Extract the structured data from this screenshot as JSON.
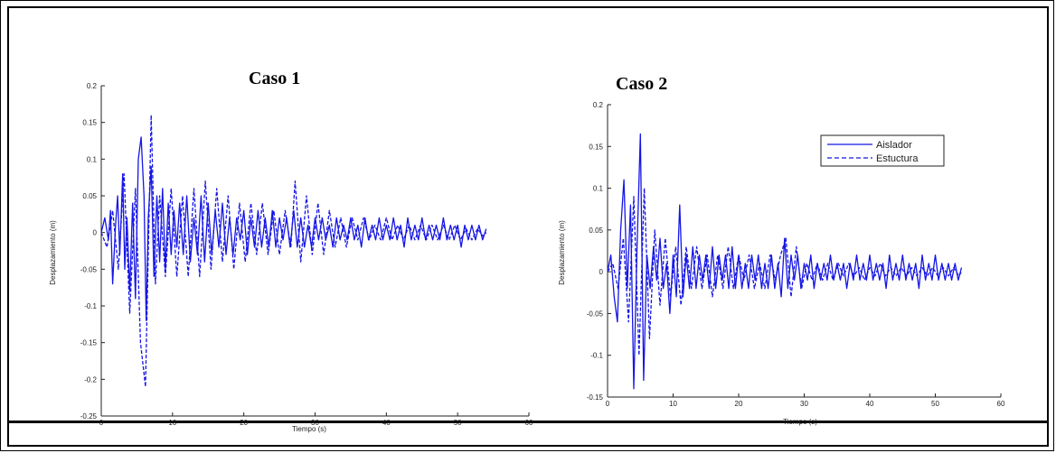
{
  "colors": {
    "series": "#1515e6",
    "frame": "#000000"
  },
  "chart_data": [
    {
      "type": "line",
      "title": "Caso 1",
      "xlabel": "Tiempo (s)",
      "ylabel": "Desplazamiento (m)",
      "xlim": [
        0,
        60
      ],
      "ylim": [
        -0.25,
        0.2
      ],
      "xticks": [
        "0",
        "10",
        "20",
        "30",
        "40",
        "50",
        "60"
      ],
      "yticks": [
        "0.2",
        "0.15",
        "0.1",
        "0.05",
        "0",
        "-0.05",
        "-0.1",
        "-0.15",
        "-0.2",
        "-0.25"
      ],
      "series": [
        {
          "style": "solid",
          "x": [
            0,
            0.5,
            1,
            1.3,
            1.6,
            2,
            2.3,
            2.6,
            3,
            3.3,
            3.6,
            4,
            4.4,
            4.8,
            5.2,
            5.6,
            6,
            6.3,
            6.6,
            7,
            7.4,
            7.8,
            8.2,
            8.6,
            9,
            9.4,
            9.8,
            10.2,
            10.6,
            11,
            11.5,
            12,
            12.5,
            13,
            13.5,
            14,
            14.5,
            15,
            15.5,
            16,
            16.5,
            17,
            17.5,
            18,
            18.5,
            19,
            19.5,
            20,
            20.5,
            21,
            21.5,
            22,
            22.5,
            23,
            23.5,
            24,
            24.5,
            25,
            25.5,
            26,
            26.5,
            27,
            27.5,
            28,
            28.5,
            29,
            29.5,
            30,
            30.5,
            31,
            31.5,
            32,
            32.5,
            33,
            33.5,
            34,
            34.5,
            35,
            35.5,
            36,
            36.5,
            37,
            37.5,
            38,
            38.5,
            39,
            39.5,
            40,
            40.5,
            41,
            41.5,
            42,
            42.5,
            43,
            43.5,
            44,
            44.5,
            45,
            45.5,
            46,
            46.5,
            47,
            47.5,
            48,
            48.5,
            49,
            49.5,
            50,
            50.5,
            51,
            51.5,
            52,
            52.5,
            53,
            53.5,
            54
          ],
          "y": [
            0,
            0.02,
            -0.01,
            0.03,
            -0.07,
            0.01,
            0.05,
            -0.03,
            0.08,
            -0.05,
            0.02,
            -0.08,
            0.04,
            -0.09,
            0.1,
            0.13,
            0.05,
            -0.12,
            0.02,
            0.09,
            -0.06,
            0.05,
            -0.04,
            0.06,
            -0.05,
            0.04,
            -0.03,
            0.03,
            -0.02,
            0.04,
            -0.03,
            0.05,
            -0.04,
            0.02,
            -0.03,
            0.05,
            -0.04,
            0.04,
            -0.03,
            0.03,
            -0.02,
            0.04,
            -0.03,
            0.02,
            -0.03,
            0.02,
            -0.01,
            0.03,
            -0.03,
            0.02,
            -0.02,
            0.03,
            -0.02,
            0.02,
            -0.02,
            0.03,
            -0.02,
            0.02,
            -0.01,
            0.02,
            -0.02,
            0.03,
            -0.02,
            0.02,
            -0.02,
            0.01,
            -0.02,
            0.02,
            -0.01,
            0.02,
            -0.01,
            0.01,
            -0.02,
            0.02,
            -0.01,
            0.01,
            -0.01,
            0.02,
            -0.01,
            0.01,
            -0.02,
            0.02,
            -0.01,
            0.01,
            -0.01,
            0.02,
            -0.01,
            0.01,
            -0.01,
            0.02,
            -0.01,
            0.01,
            -0.02,
            0.02,
            -0.01,
            0.01,
            -0.01,
            0.02,
            -0.01,
            0.01,
            -0.01,
            0.01,
            -0.01,
            0.02,
            -0.01,
            0.01,
            -0.01,
            0.01,
            -0.02,
            0.01,
            -0.01,
            0.01,
            -0.01,
            0.01,
            -0.01,
            0.005
          ]
        },
        {
          "style": "dashed",
          "x": [
            0,
            0.8,
            1.6,
            2.4,
            3.2,
            4,
            4.8,
            5.5,
            6.2,
            7,
            7.6,
            8.2,
            9,
            9.8,
            10.6,
            11.4,
            12.2,
            13,
            13.8,
            14.6,
            15.4,
            16.2,
            17,
            17.8,
            18.6,
            19.4,
            20.2,
            21,
            21.8,
            22.6,
            23.4,
            24.2,
            25,
            25.8,
            26.6,
            27.2,
            28,
            28.8,
            29.6,
            30.4,
            31.2,
            32,
            32.8,
            33.6,
            34.4,
            35.2,
            36,
            36.8,
            37.6,
            38.4,
            39.2,
            40,
            40.8,
            41.6,
            42.4,
            43.2,
            44,
            44.8,
            45.6,
            46.4,
            47.2,
            48,
            48.8,
            49.6,
            50.4,
            51.2,
            52,
            52.8,
            53.6,
            54
          ],
          "y": [
            0,
            -0.02,
            0.03,
            -0.05,
            0.08,
            -0.11,
            0.06,
            -0.15,
            -0.21,
            0.16,
            -0.07,
            0.05,
            -0.06,
            0.06,
            -0.06,
            0.05,
            -0.06,
            0.06,
            -0.06,
            0.07,
            -0.05,
            0.06,
            -0.04,
            0.05,
            -0.05,
            0.04,
            -0.04,
            0.04,
            -0.03,
            0.04,
            -0.03,
            0.03,
            -0.03,
            0.03,
            -0.02,
            0.07,
            -0.04,
            0.05,
            -0.03,
            0.04,
            -0.03,
            0.03,
            -0.02,
            0.02,
            -0.02,
            0.02,
            -0.01,
            0.02,
            -0.01,
            0.01,
            -0.01,
            0.02,
            -0.01,
            0.01,
            -0.01,
            0.01,
            -0.01,
            0.01,
            -0.01,
            0.01,
            -0.01,
            0.01,
            -0.01,
            0.01,
            -0.01,
            0.005,
            -0.01,
            0.005,
            -0.005,
            0
          ]
        }
      ]
    },
    {
      "type": "line",
      "title": "Caso 2",
      "xlabel": "Tiempo (s)",
      "ylabel": "Desplazamiento (m)",
      "xlim": [
        0,
        60
      ],
      "ylim": [
        -0.15,
        0.2
      ],
      "xticks": [
        "0",
        "10",
        "20",
        "30",
        "40",
        "50",
        "60"
      ],
      "yticks": [
        "0.2",
        "0.15",
        "0.1",
        "0.05",
        "0",
        "-0.05",
        "-0.1",
        "-0.15"
      ],
      "legend": {
        "placement": "top-right"
      },
      "series": [
        {
          "name": "Aislador",
          "style": "solid",
          "x": [
            0,
            0.5,
            1,
            1.5,
            2,
            2.5,
            3,
            3.5,
            4,
            4.5,
            5,
            5.5,
            6,
            6.5,
            7,
            7.5,
            8,
            8.5,
            9,
            9.5,
            10,
            10.5,
            11,
            11.5,
            12,
            12.5,
            13,
            13.5,
            14,
            14.5,
            15,
            15.5,
            16,
            16.5,
            17,
            17.5,
            18,
            18.5,
            19,
            19.5,
            20,
            20.5,
            21,
            21.5,
            22,
            22.5,
            23,
            23.5,
            24,
            24.5,
            25,
            25.5,
            26,
            26.5,
            27,
            27.5,
            28,
            28.5,
            29,
            29.5,
            30,
            30.5,
            31,
            31.5,
            32,
            32.5,
            33,
            33.5,
            34,
            34.5,
            35,
            35.5,
            36,
            36.5,
            37,
            37.5,
            38,
            38.5,
            39,
            39.5,
            40,
            40.5,
            41,
            41.5,
            42,
            42.5,
            43,
            43.5,
            44,
            44.5,
            45,
            45.5,
            46,
            46.5,
            47,
            47.5,
            48,
            48.5,
            49,
            49.5,
            50,
            50.5,
            51,
            51.5,
            52,
            52.5,
            53,
            53.5,
            54
          ],
          "y": [
            0,
            0.02,
            -0.03,
            -0.06,
            0.05,
            0.11,
            -0.02,
            0.08,
            -0.14,
            0.03,
            0.165,
            -0.13,
            0.02,
            -0.02,
            0.03,
            -0.01,
            0.04,
            -0.02,
            0.01,
            -0.05,
            0.02,
            -0.03,
            0.08,
            -0.03,
            0.02,
            -0.02,
            0.03,
            -0.02,
            0.02,
            -0.01,
            0.02,
            -0.02,
            0.03,
            -0.02,
            0.02,
            -0.01,
            0.02,
            -0.02,
            0.03,
            -0.02,
            0.02,
            -0.02,
            0.01,
            -0.02,
            0.02,
            -0.01,
            0.02,
            -0.02,
            0.01,
            -0.02,
            0.02,
            -0.02,
            0.01,
            -0.03,
            0.04,
            -0.02,
            0.02,
            -0.01,
            0.02,
            -0.02,
            0.01,
            -0.01,
            0.02,
            -0.02,
            0.01,
            -0.01,
            0.01,
            -0.01,
            0.02,
            -0.01,
            0.01,
            -0.01,
            0.01,
            -0.02,
            0.01,
            -0.01,
            0.02,
            -0.01,
            0.01,
            -0.01,
            0.02,
            -0.01,
            0.01,
            -0.01,
            0.01,
            -0.02,
            0.02,
            -0.01,
            0.01,
            -0.01,
            0.02,
            -0.01,
            0.01,
            -0.01,
            0.01,
            -0.02,
            0.02,
            -0.01,
            0.01,
            -0.01,
            0.02,
            -0.01,
            0.01,
            -0.01,
            0.01,
            -0.01,
            0.01,
            -0.01,
            0.005
          ]
        },
        {
          "name": "Estuctura",
          "style": "dashed",
          "x": [
            0,
            0.8,
            1.6,
            2.4,
            3.2,
            4,
            4.8,
            5.6,
            6.4,
            7.2,
            8,
            8.8,
            9.6,
            10.4,
            11.2,
            12,
            12.8,
            13.6,
            14.4,
            15.2,
            16,
            16.8,
            17.6,
            18.4,
            19.2,
            20,
            20.8,
            21.6,
            22.4,
            23.2,
            24,
            24.8,
            25.6,
            26.4,
            27.2,
            28,
            28.8,
            29.6,
            30.4,
            31.2,
            32,
            32.8,
            33.6,
            34.4,
            35.2,
            36,
            36.8,
            37.6,
            38.4,
            39.2,
            40,
            40.8,
            41.6,
            42.4,
            43.2,
            44,
            44.8,
            45.6,
            46.4,
            47.2,
            48,
            48.8,
            49.6,
            50.4,
            51.2,
            52,
            52.8,
            53.6,
            54
          ],
          "y": [
            0,
            0.01,
            -0.02,
            0.04,
            -0.06,
            0.09,
            -0.1,
            0.1,
            -0.08,
            0.05,
            -0.04,
            0.04,
            -0.03,
            0.03,
            -0.04,
            0.03,
            -0.02,
            0.03,
            -0.02,
            0.02,
            -0.03,
            0.02,
            -0.02,
            0.03,
            -0.02,
            0.02,
            -0.01,
            0.02,
            -0.02,
            0.01,
            -0.02,
            0.02,
            -0.01,
            0.02,
            0.04,
            -0.03,
            0.03,
            -0.02,
            0.01,
            -0.01,
            0.01,
            -0.01,
            0.01,
            -0.01,
            0.01,
            -0.005,
            0.01,
            -0.005,
            0.005,
            -0.01,
            0.005,
            -0.005,
            0.01,
            -0.005,
            0.005,
            -0.005,
            0.005,
            -0.005,
            0.005,
            -0.005,
            0.005,
            -0.005,
            0.005,
            -0.005,
            0.005,
            -0.005,
            0.005,
            -0.005,
            0
          ]
        }
      ]
    }
  ]
}
